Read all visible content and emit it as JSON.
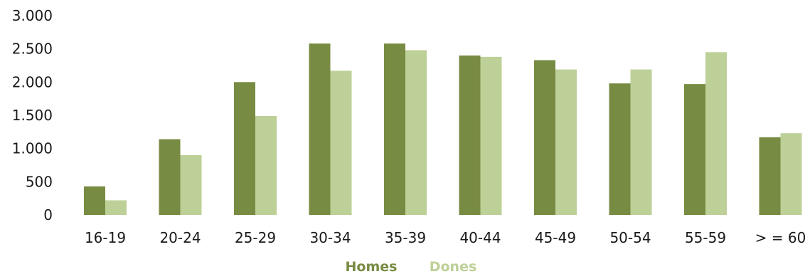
{
  "chart_data": {
    "type": "bar",
    "categories": [
      "16-19",
      "20-24",
      "25-29",
      "30-34",
      "35-39",
      "40-44",
      "45-49",
      "50-54",
      "55-59",
      "> = 60"
    ],
    "series": [
      {
        "name": "Homes",
        "color": "#788b42",
        "values": [
          430,
          1140,
          2000,
          2580,
          2580,
          2400,
          2330,
          1980,
          1970,
          1170
        ]
      },
      {
        "name": "Dones",
        "color": "#bdd097",
        "values": [
          220,
          900,
          1490,
          2170,
          2480,
          2380,
          2190,
          2190,
          2450,
          1230
        ]
      }
    ],
    "ylim": [
      0,
      3000
    ],
    "yticks": [
      0,
      500,
      1000,
      1500,
      2000,
      2500,
      3000
    ],
    "ytick_labels": [
      "0",
      "500",
      "1.000",
      "1.500",
      "2.000",
      "2.500",
      "3.000"
    ],
    "grid": false,
    "legend_position": "bottom-center",
    "title": "",
    "xlabel": "",
    "ylabel": ""
  }
}
